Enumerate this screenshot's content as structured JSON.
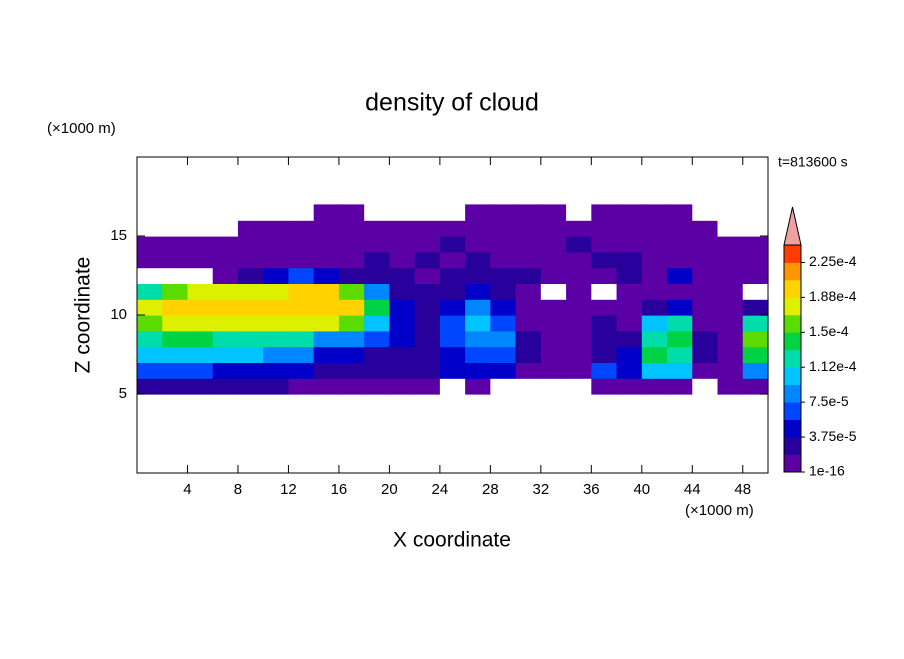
{
  "chart_data": {
    "type": "contour",
    "title": "density of cloud",
    "x_label": "X coordinate",
    "y_label": "Z coordinate",
    "x_unit": "(×1000 m)",
    "y_unit": "(×1000 m)",
    "annotation": "t=813600 s",
    "xlim": [
      0,
      50
    ],
    "ylim": [
      0,
      20
    ],
    "xticks": [
      4,
      8,
      12,
      16,
      20,
      24,
      28,
      32,
      36,
      40,
      44,
      48
    ],
    "yticks": [
      5,
      10,
      15
    ],
    "x": [
      1,
      3,
      5,
      7,
      9,
      11,
      13,
      15,
      17,
      19,
      21,
      23,
      25,
      27,
      29,
      31,
      33,
      35,
      37,
      39,
      41,
      43,
      45,
      47,
      49
    ],
    "y": [
      5.5,
      6.5,
      7.5,
      8.5,
      9.5,
      10.5,
      11.5,
      12.5,
      13.5,
      14.5,
      15.5,
      16.5
    ],
    "z": [
      [
        2e-05,
        2e-05,
        2e-05,
        2e-05,
        2e-05,
        2e-05,
        1e-05,
        1e-05,
        1e-05,
        1e-05,
        1e-05,
        1e-05,
        0,
        1e-05,
        0,
        0,
        0,
        0,
        1e-05,
        1e-05,
        1e-05,
        1e-05,
        0,
        1e-05,
        1e-05
      ],
      [
        6e-05,
        6e-05,
        6e-05,
        5e-05,
        5e-05,
        5e-05,
        5e-05,
        3e-05,
        3e-05,
        2e-05,
        3e-05,
        2e-05,
        4e-05,
        5e-05,
        4e-05,
        1e-05,
        1e-05,
        1e-05,
        6e-05,
        5e-05,
        0.00011,
        0.0001,
        1e-05,
        1e-05,
        8e-05
      ],
      [
        0.000105,
        0.000105,
        0.000105,
        0.0001,
        0.0001,
        9e-05,
        8e-05,
        5e-05,
        4e-05,
        3e-05,
        3e-05,
        3e-05,
        5e-05,
        6e-05,
        7e-05,
        2e-05,
        1e-05,
        1e-05,
        3e-05,
        4e-05,
        0.00014,
        0.00013,
        2e-05,
        1e-05,
        0.00015
      ],
      [
        0.00013,
        0.000135,
        0.000135,
        0.00013,
        0.00013,
        0.000125,
        0.00012,
        9e-05,
        8e-05,
        6e-05,
        4e-05,
        3e-05,
        6e-05,
        9e-05,
        8e-05,
        2e-05,
        1e-05,
        1e-05,
        2e-05,
        3e-05,
        0.00013,
        0.00015,
        2e-05,
        1e-05,
        0.00016
      ],
      [
        0.00016,
        0.000175,
        0.000185,
        0.000185,
        0.00018,
        0.00018,
        0.000175,
        0.000175,
        0.00016,
        0.00011,
        4e-05,
        3e-05,
        7e-05,
        0.00011,
        6e-05,
        1e-05,
        1e-05,
        1e-05,
        2e-05,
        1e-05,
        0.0001,
        0.00012,
        1e-05,
        1e-05,
        0.00013
      ],
      [
        0.00017,
        0.00019,
        0.0002,
        0.0002,
        0.000195,
        0.00019,
        0.00019,
        0.0002,
        0.00019,
        0.00015,
        5e-05,
        3e-05,
        5e-05,
        8e-05,
        5e-05,
        1e-05,
        1e-05,
        1e-05,
        1e-05,
        1e-05,
        3e-05,
        4e-05,
        1e-05,
        1e-05,
        3e-05
      ],
      [
        0.00013,
        0.00016,
        0.00018,
        0.000185,
        0.00018,
        0.00018,
        0.00019,
        0.000205,
        0.00016,
        9e-05,
        3e-05,
        2e-05,
        3e-05,
        5e-05,
        3e-05,
        1e-05,
        0,
        1e-05,
        0,
        1e-05,
        1e-05,
        1e-05,
        1e-05,
        1e-05,
        0
      ],
      [
        0,
        0,
        0,
        1e-05,
        3e-05,
        4e-05,
        6e-05,
        5e-05,
        3e-05,
        2e-05,
        2e-05,
        1e-05,
        3e-05,
        2e-05,
        3e-05,
        2e-05,
        1e-05,
        1e-05,
        1e-05,
        3e-05,
        1e-05,
        4e-05,
        1e-05,
        1e-05,
        1e-05
      ],
      [
        1e-05,
        1e-05,
        1e-05,
        1e-05,
        1e-05,
        1e-05,
        1e-05,
        1e-05,
        1e-05,
        2e-05,
        1e-05,
        3e-05,
        1e-05,
        2e-05,
        1e-05,
        1e-05,
        1e-05,
        1e-05,
        2e-05,
        3e-05,
        1e-05,
        1e-05,
        1e-05,
        1e-05,
        1e-05
      ],
      [
        1e-05,
        1e-05,
        1e-05,
        1e-05,
        1e-05,
        1e-05,
        1e-05,
        1e-05,
        1e-05,
        1e-05,
        1e-05,
        1e-05,
        2e-05,
        1e-05,
        1e-05,
        1e-05,
        1e-05,
        2e-05,
        1e-05,
        1e-05,
        1e-05,
        1e-05,
        1e-05,
        1e-05,
        1e-05
      ],
      [
        0,
        0,
        0,
        0,
        1e-05,
        1e-05,
        1e-05,
        1e-05,
        1e-05,
        1e-05,
        1e-05,
        1e-05,
        1e-05,
        1e-05,
        1e-05,
        1e-05,
        1e-05,
        1e-05,
        1e-05,
        1e-05,
        1e-05,
        1e-05,
        1e-05,
        0,
        0
      ],
      [
        0,
        0,
        0,
        0,
        0,
        0,
        0,
        1e-05,
        1e-05,
        0,
        0,
        0,
        0,
        1e-05,
        1e-05,
        1e-05,
        1e-05,
        0,
        1e-05,
        1e-05,
        1e-05,
        1e-05,
        0,
        0,
        0
      ]
    ],
    "colorbar": {
      "clim": [
        1e-16,
        0.00024375
      ],
      "ticks": [
        1e-16,
        {
          "value": 3.75e-05,
          "label": "3.75e-5"
        },
        {
          "value": 7.5e-05,
          "label": "7.5e-5"
        },
        {
          "value": 0.0001125,
          "label": "1.12e-4"
        },
        {
          "value": 0.00015,
          "label": "1.5e-4"
        },
        {
          "value": 0.0001875,
          "label": "1.88e-4"
        },
        {
          "value": 0.000225,
          "label": "2.25e-4"
        }
      ],
      "colors": [
        "#5a00a5",
        "#28009b",
        "#0000c8",
        "#0046ff",
        "#0087ff",
        "#00c3ff",
        "#00dcaa",
        "#00d246",
        "#5adc00",
        "#dcf000",
        "#ffd200",
        "#ff9600",
        "#ff3c00"
      ],
      "extend_color": "#f0a0a0"
    }
  }
}
